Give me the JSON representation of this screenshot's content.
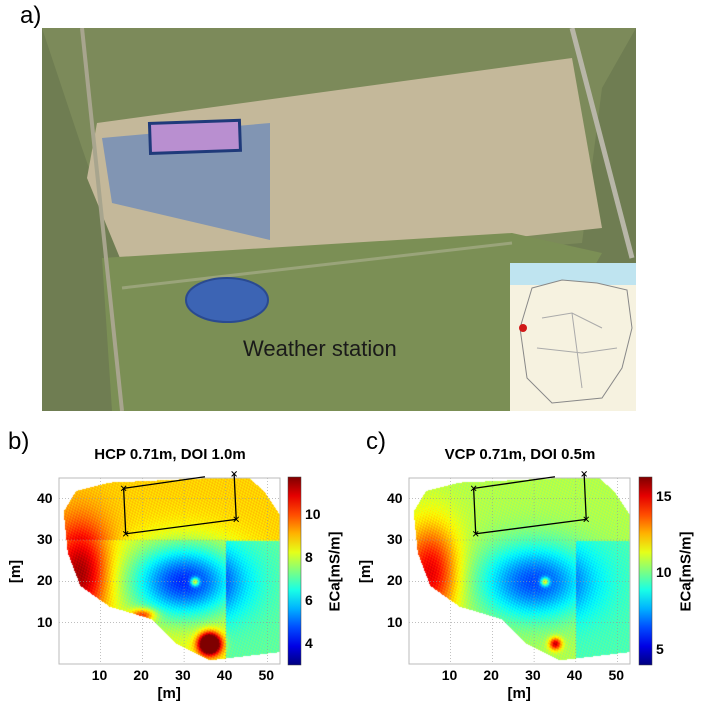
{
  "panel_a": {
    "label": "a)",
    "annotation": "Weather station",
    "colors": {
      "field_box": "#b98fd0",
      "footprint": "#4a78c8",
      "weather_station": "#3c64b4"
    }
  },
  "chart_data": [
    {
      "type": "heatmap",
      "panel_label": "b)",
      "title": "HCP 0.71m, DOI 1.0m",
      "xlabel": "[m]",
      "ylabel": "[m]",
      "xlim": [
        0,
        53
      ],
      "ylim": [
        0,
        45
      ],
      "xticks": [
        10,
        20,
        30,
        40,
        50
      ],
      "yticks": [
        10,
        20,
        30,
        40
      ],
      "grid": true,
      "colorbar": {
        "label": "ECa[mS/m]",
        "range": [
          3,
          11.8
        ],
        "ticks": [
          4,
          6,
          8,
          10
        ],
        "colormap": "jet"
      },
      "plot_box_corners": [
        [
          15.5,
          42.5
        ],
        [
          16,
          31.5
        ],
        [
          42.5,
          35
        ],
        [
          42,
          46
        ]
      ],
      "description_values": {
        "left_zone": 10.5,
        "center_zone": 5.5,
        "top_zone": 8.8,
        "hotspot_bottom": 11
      }
    },
    {
      "type": "heatmap",
      "panel_label": "c)",
      "title": "VCP 0.71m, DOI 0.5m",
      "xlabel": "[m]",
      "ylabel": "[m]",
      "xlim": [
        0,
        53
      ],
      "ylim": [
        0,
        45
      ],
      "xticks": [
        10,
        20,
        30,
        40,
        50
      ],
      "yticks": [
        10,
        20,
        30,
        40
      ],
      "grid": true,
      "colorbar": {
        "label": "ECa[mS/m]",
        "range": [
          4,
          16.3
        ],
        "ticks": [
          5,
          10,
          15
        ],
        "colormap": "jet"
      },
      "plot_box_corners": [
        [
          15.5,
          42.5
        ],
        [
          16,
          31.5
        ],
        [
          42.5,
          35
        ],
        [
          42,
          46
        ]
      ],
      "description_values": {
        "left_zone": 14,
        "center_zone": 8,
        "top_zone": 11,
        "hotspot_bottom": 13
      }
    }
  ]
}
